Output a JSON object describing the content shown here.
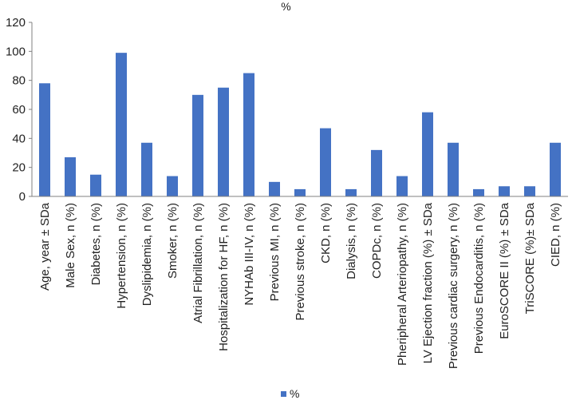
{
  "chart_data": {
    "type": "bar",
    "title": "%",
    "xlabel": "",
    "ylabel": "",
    "ylim": [
      0,
      120
    ],
    "yticks": [
      0,
      20,
      40,
      60,
      80,
      100,
      120
    ],
    "grid": false,
    "legend_position": "bottom",
    "colors": {
      "bar": "#4472C4",
      "axis": "#808080"
    },
    "categories": [
      "Age, year ± SDa",
      "Male Sex, n (%)",
      "Diabetes, n (%)",
      "Hypertension, n (%)",
      "Dyslipidemia, n (%)",
      "Smoker, n (%)",
      "Atrial Fibrillation, n (%)",
      "Hospitalization for HF, n (%)",
      "NYHAb III-IV, n (%)",
      "Previous MI, n (%)",
      "Previous stroke, n (%)",
      "CKD, n (%)",
      "Dialysis, n (%)",
      "COPDc, n (%)",
      "Pheripheral Arteriopathy, n (%)",
      "LV Ejection fraction (%) ± SDa",
      "Previous cardiac surgery, n (%)",
      "Previous Endocarditis, n (%)",
      "EuroSCORE II (%) ± SDa",
      "TriSCORE (%)± SDa",
      "CIED, n (%)"
    ],
    "series": [
      {
        "name": "%",
        "values": [
          78,
          27,
          15,
          99,
          37,
          14,
          70,
          75,
          85,
          10,
          5,
          47,
          5,
          32,
          14,
          58,
          37,
          5,
          7,
          7,
          37
        ]
      }
    ]
  }
}
